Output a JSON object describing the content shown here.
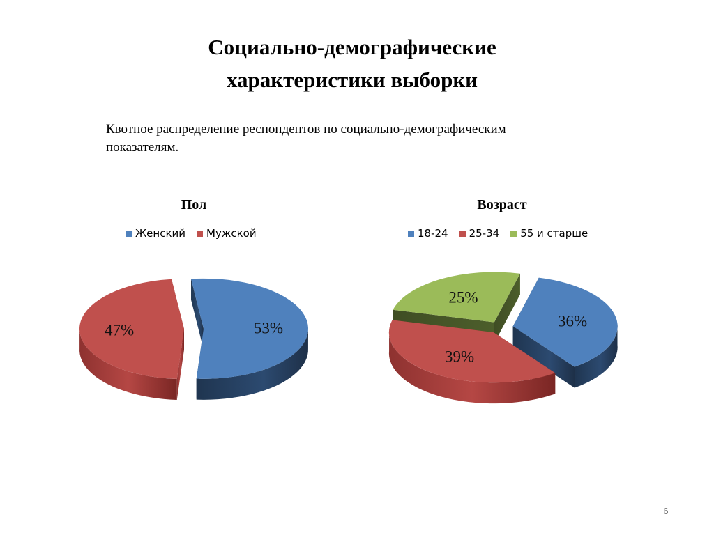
{
  "slide": {
    "title_lines": [
      "Социально-демографические",
      "характеристики выборки"
    ],
    "subtitle_lines": [
      "Квотное распределение респондентов по социально-демографическим",
      "показателям."
    ],
    "page_number": "6"
  },
  "chart_data": [
    {
      "type": "pie",
      "title": "Пол",
      "categories": [
        "Женский",
        "Мужской"
      ],
      "values": [
        53,
        47
      ],
      "labels": [
        "53%",
        "47%"
      ],
      "colors": [
        "#4f81bd",
        "#c0504d"
      ],
      "exploded": true,
      "style": "3d",
      "legend": "top"
    },
    {
      "type": "pie",
      "title": "Возраст",
      "categories": [
        "18-24",
        "25-34",
        "55 и старше"
      ],
      "values": [
        36,
        39,
        25
      ],
      "labels": [
        "36%",
        "39%",
        "25%"
      ],
      "colors": [
        "#4f81bd",
        "#c0504d",
        "#9bbb59"
      ],
      "exploded": true,
      "style": "3d",
      "legend": "top"
    }
  ]
}
